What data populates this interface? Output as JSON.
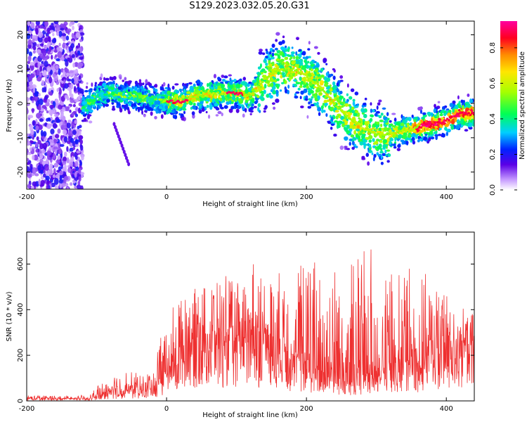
{
  "title": "S129.2023.032.05.20.G31",
  "chart_data": [
    {
      "type": "heatmap",
      "xlabel": "Height of straight line (km)",
      "ylabel": "Frequency (Hz)",
      "xlim": [
        -200,
        440
      ],
      "ylim": [
        -25,
        24
      ],
      "xticks": [
        -200,
        0,
        200,
        400
      ],
      "yticks": [
        -20,
        -10,
        0,
        10,
        20
      ],
      "colorbar": {
        "label": "Normalized spectral amplitude",
        "range": [
          0,
          0.95
        ],
        "ticks": [
          0.0,
          0.2,
          0.4,
          0.6,
          0.8
        ],
        "colors": [
          "#ffffff",
          "#b36bff",
          "#4a00e0",
          "#0033ff",
          "#00d4ff",
          "#00ff66",
          "#b8ff00",
          "#ffee00",
          "#ff8800",
          "#ff0022",
          "#ff00aa"
        ]
      },
      "ridge": {
        "x": [
          -120,
          -100,
          -80,
          -60,
          -40,
          -20,
          0,
          20,
          40,
          60,
          80,
          100,
          120,
          140,
          160,
          180,
          200,
          220,
          240,
          260,
          280,
          300,
          320,
          340,
          360,
          380,
          400,
          420,
          440
        ],
        "y": [
          -1,
          2,
          3,
          2,
          2,
          1,
          0.5,
          0.5,
          2,
          2.5,
          3,
          3,
          2,
          7,
          10,
          10,
          8,
          5,
          0,
          -4,
          -7,
          -9,
          -9,
          -8,
          -7,
          -6,
          -5,
          -3,
          -3
        ]
      }
    },
    {
      "type": "line",
      "xlabel": "Height of straight line (km)",
      "ylabel": "SNR (10 * v/v)",
      "xlim": [
        -200,
        440
      ],
      "ylim": [
        0,
        740
      ],
      "xticks": [
        -200,
        0,
        200,
        400
      ],
      "yticks": [
        0,
        200,
        400,
        600
      ],
      "color": "#ee3030",
      "envelope": {
        "x": [
          -200,
          -150,
          -110,
          -100,
          -80,
          -50,
          -30,
          -20,
          0,
          20,
          50,
          80,
          100,
          120,
          150,
          180,
          200,
          230,
          260,
          280,
          300,
          330,
          360,
          380,
          400,
          420,
          440
        ],
        "base": [
          10,
          10,
          10,
          20,
          40,
          50,
          45,
          60,
          120,
          230,
          290,
          290,
          290,
          280,
          300,
          200,
          180,
          140,
          120,
          120,
          130,
          160,
          190,
          220,
          250,
          260,
          260
        ],
        "peak": [
          25,
          25,
          25,
          60,
          120,
          130,
          110,
          160,
          360,
          480,
          500,
          560,
          520,
          620,
          530,
          650,
          640,
          620,
          630,
          700,
          650,
          600,
          580,
          540,
          460,
          420,
          380
        ]
      }
    }
  ]
}
